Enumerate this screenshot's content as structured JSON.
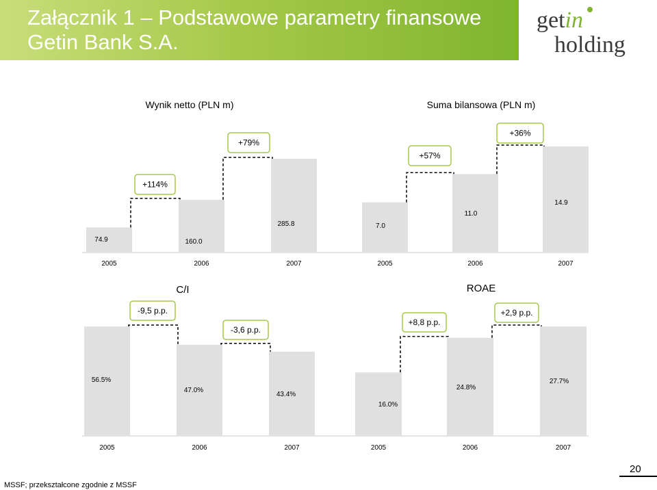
{
  "header": {
    "title_line1": "Załącznik 1 – Podstawowe parametry finansowe",
    "title_line2": "Getin Bank S.A."
  },
  "logo": {
    "part1": "get",
    "part2": "in",
    "part3": "holding"
  },
  "colors": {
    "bar": "#e0e0e0",
    "box_border": "#a6c94a",
    "accent": "#7fb52e"
  },
  "chart_data": [
    {
      "type": "bar",
      "title": "Wynik netto (PLN m)",
      "categories": [
        "2005",
        "2006",
        "2007"
      ],
      "values": [
        74.9,
        160.0,
        285.8
      ],
      "value_labels": [
        "74.9",
        "160.0",
        "285.8"
      ],
      "changes": [
        "+114%",
        "+79%"
      ]
    },
    {
      "type": "bar",
      "title": "Suma bilansowa (PLN m)",
      "categories": [
        "2005",
        "2006",
        "2007"
      ],
      "values": [
        7.0,
        11.0,
        14.9
      ],
      "value_labels": [
        "7.0",
        "11.0",
        "14.9"
      ],
      "changes": [
        "+57%",
        "+36%"
      ]
    },
    {
      "type": "bar",
      "title": "C/I",
      "categories": [
        "2005",
        "2006",
        "2007"
      ],
      "values": [
        56.5,
        47.0,
        43.4
      ],
      "value_labels": [
        "56.5%",
        "47.0%",
        "43.4%"
      ],
      "changes": [
        "-9,5 p.p.",
        "-3,6 p.p."
      ]
    },
    {
      "type": "bar",
      "title": "ROAE",
      "categories": [
        "2005",
        "2006",
        "2007"
      ],
      "values": [
        16.0,
        24.8,
        27.7
      ],
      "value_labels": [
        "16.0%",
        "24.8%",
        "27.7%"
      ],
      "changes": [
        "+8,8 p.p.",
        "+2,9 p.p."
      ]
    }
  ],
  "footer": {
    "footnote": "MSSF; przekształcone zgodnie z MSSF",
    "page_number": "20"
  }
}
